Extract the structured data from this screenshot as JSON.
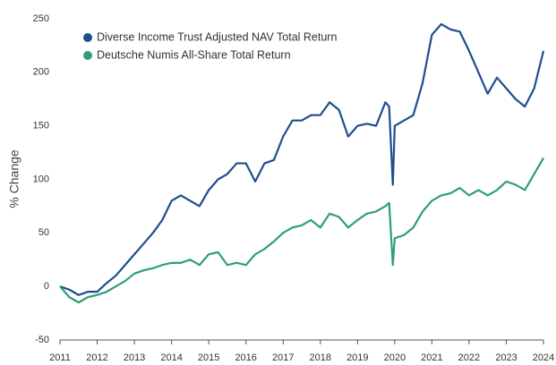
{
  "chart_data": {
    "type": "line",
    "y_label": "% Change",
    "x": [
      2011,
      2011.25,
      2011.5,
      2011.75,
      2012,
      2012.25,
      2012.5,
      2012.75,
      2013,
      2013.25,
      2013.5,
      2013.75,
      2014,
      2014.25,
      2014.5,
      2014.75,
      2015,
      2015.25,
      2015.5,
      2015.75,
      2016,
      2016.25,
      2016.5,
      2016.75,
      2017,
      2017.25,
      2017.5,
      2017.75,
      2018,
      2018.25,
      2018.5,
      2018.75,
      2019,
      2019.25,
      2019.5,
      2019.75,
      2019.85,
      2019.95,
      2020,
      2020.25,
      2020.5,
      2020.75,
      2021,
      2021.25,
      2021.5,
      2021.75,
      2022,
      2022.25,
      2022.5,
      2022.75,
      2023,
      2023.25,
      2023.5,
      2023.75,
      2024
    ],
    "series": [
      {
        "name": "Diverse Income Trust Adjusted NAV Total Return",
        "color": "#1f4e8c",
        "values": [
          0,
          -3,
          -8,
          -5,
          -5,
          3,
          10,
          20,
          30,
          40,
          50,
          62,
          80,
          85,
          80,
          75,
          90,
          100,
          105,
          115,
          115,
          98,
          115,
          118,
          140,
          155,
          155,
          160,
          160,
          172,
          165,
          140,
          150,
          152,
          150,
          172,
          168,
          95,
          150,
          155,
          160,
          190,
          235,
          245,
          240,
          238,
          220,
          200,
          180,
          195,
          185,
          175,
          168,
          185,
          220
        ]
      },
      {
        "name": "Deutsche Numis All-Share Total Return",
        "color": "#2e9e78",
        "values": [
          0,
          -10,
          -15,
          -10,
          -8,
          -5,
          0,
          5,
          12,
          15,
          17,
          20,
          22,
          22,
          25,
          20,
          30,
          32,
          20,
          22,
          20,
          30,
          35,
          42,
          50,
          55,
          57,
          62,
          55,
          68,
          65,
          55,
          62,
          68,
          70,
          75,
          78,
          20,
          45,
          48,
          55,
          70,
          80,
          85,
          87,
          92,
          85,
          90,
          85,
          90,
          98,
          95,
          90,
          105,
          120
        ]
      }
    ],
    "xlim": [
      2011,
      2024
    ],
    "xticks": [
      2011,
      2012,
      2013,
      2014,
      2015,
      2016,
      2017,
      2018,
      2019,
      2020,
      2021,
      2022,
      2023,
      2024
    ],
    "ylim": [
      -50,
      250
    ],
    "yticks": [
      -50,
      0,
      50,
      100,
      150,
      200,
      250
    ],
    "grid": false,
    "legend": "upper left"
  }
}
